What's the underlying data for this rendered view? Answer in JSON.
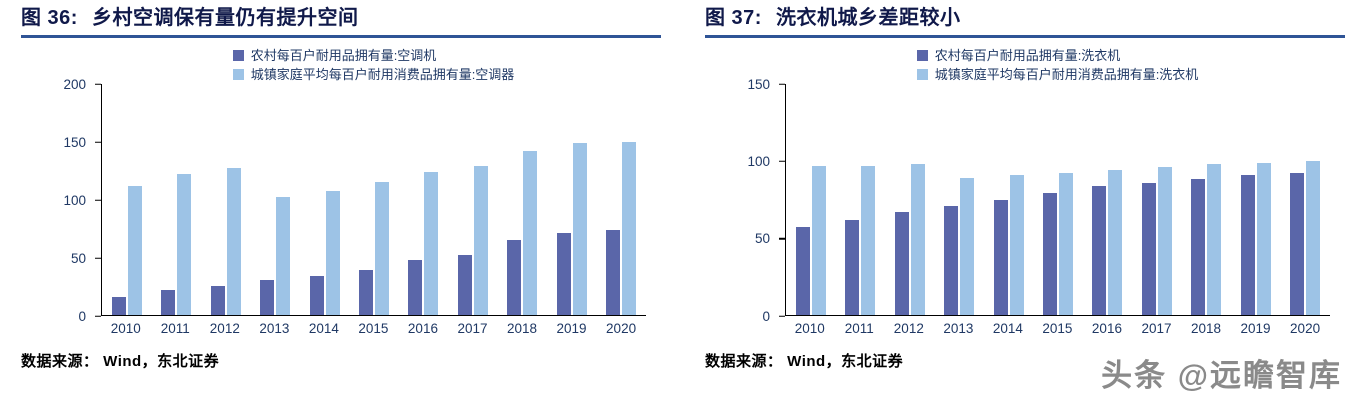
{
  "watermark": "头条 @远瞻智库",
  "colors": {
    "rule": "#2F5496",
    "axis_text": "#1F3864",
    "rural_bar": "#5A66A9",
    "urban_bar": "#9DC3E6"
  },
  "figures": [
    {
      "label": "图 36:",
      "title": "乡村空调保有量仍有提升空间",
      "source": "数据来源： Wind，东北证券"
    },
    {
      "label": "图 37:",
      "title": "洗衣机城乡差距较小",
      "source": "数据来源： Wind，东北证券"
    }
  ],
  "chart_data": [
    {
      "type": "bar",
      "title": "乡村空调保有量仍有提升空间",
      "categories": [
        "2010",
        "2011",
        "2012",
        "2013",
        "2014",
        "2015",
        "2016",
        "2017",
        "2018",
        "2019",
        "2020"
      ],
      "series": [
        {
          "name": "农村每百户耐用品拥有量:空调机",
          "color": "#5A66A9",
          "values": [
            16,
            22,
            25,
            30,
            34,
            39,
            48,
            52,
            65,
            71,
            74
          ]
        },
        {
          "name": "城镇家庭平均每百户耐用消费品拥有量:空调器",
          "color": "#9DC3E6",
          "values": [
            112,
            122,
            127,
            102,
            107,
            115,
            124,
            129,
            142,
            149,
            150
          ]
        }
      ],
      "ylim": [
        0,
        200
      ],
      "yticks": [
        0,
        50,
        100,
        150,
        200
      ],
      "grid": false,
      "legend_position": "top"
    },
    {
      "type": "bar",
      "title": "洗衣机城乡差距较小",
      "categories": [
        "2010",
        "2011",
        "2012",
        "2013",
        "2014",
        "2015",
        "2016",
        "2017",
        "2018",
        "2019",
        "2020"
      ],
      "series": [
        {
          "name": "农村每百户耐用品拥有量:洗衣机",
          "color": "#5A66A9",
          "values": [
            57,
            62,
            67,
            71,
            75,
            79,
            84,
            86,
            88,
            91,
            92
          ]
        },
        {
          "name": "城镇家庭平均每百户耐用消费品拥有量:洗衣机",
          "color": "#9DC3E6",
          "values": [
            97,
            97,
            98,
            89,
            91,
            92,
            94,
            96,
            98,
            99,
            100
          ]
        }
      ],
      "ylim": [
        0,
        150
      ],
      "yticks": [
        0,
        50,
        100,
        150
      ],
      "grid": false,
      "legend_position": "top"
    }
  ]
}
